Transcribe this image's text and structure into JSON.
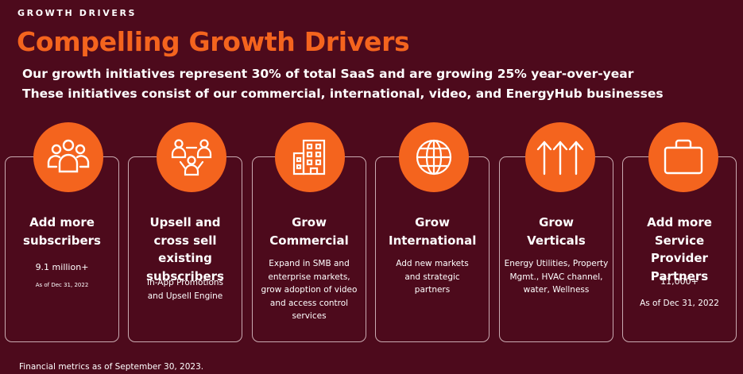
{
  "header": {
    "eyebrow": "GROWTH DRIVERS",
    "title": "Compelling Growth Drivers",
    "subtitle_1": "Our growth initiatives represent 30% of total SaaS and are growing 25% year-over-year",
    "subtitle_2": "These initiatives consist of our commercial, international, video, and EnergyHub businesses"
  },
  "colors": {
    "background": "#4d0a1c",
    "accent": "#f4641e",
    "card_border": "#c9aab1"
  },
  "cards": [
    {
      "icon": "people-group-icon",
      "title": "Add more subscribers",
      "metric": "9.1 million+",
      "as_of": "As of Dec 31, 2022"
    },
    {
      "icon": "people-network-icon",
      "title": "Upsell and cross sell existing subscribers",
      "description": "In-App Promotions and Upsell Engine"
    },
    {
      "icon": "building-icon",
      "title": "Grow Commercial",
      "description": "Expand in SMB and enterprise markets, grow adoption of video and access control services"
    },
    {
      "icon": "globe-icon",
      "title": "Grow International",
      "description": "Add new markets and strategic partners"
    },
    {
      "icon": "up-arrows-icon",
      "title": "Grow Verticals",
      "description": "Energy Utilities, Property Mgmt., HVAC channel, water, Wellness"
    },
    {
      "icon": "briefcase-icon",
      "title": "Add more Service Provider Partners",
      "metric": "11,000+",
      "as_of": "As of Dec 31, 2022"
    }
  ],
  "footnote": "Financial metrics as of September 30, 2023."
}
